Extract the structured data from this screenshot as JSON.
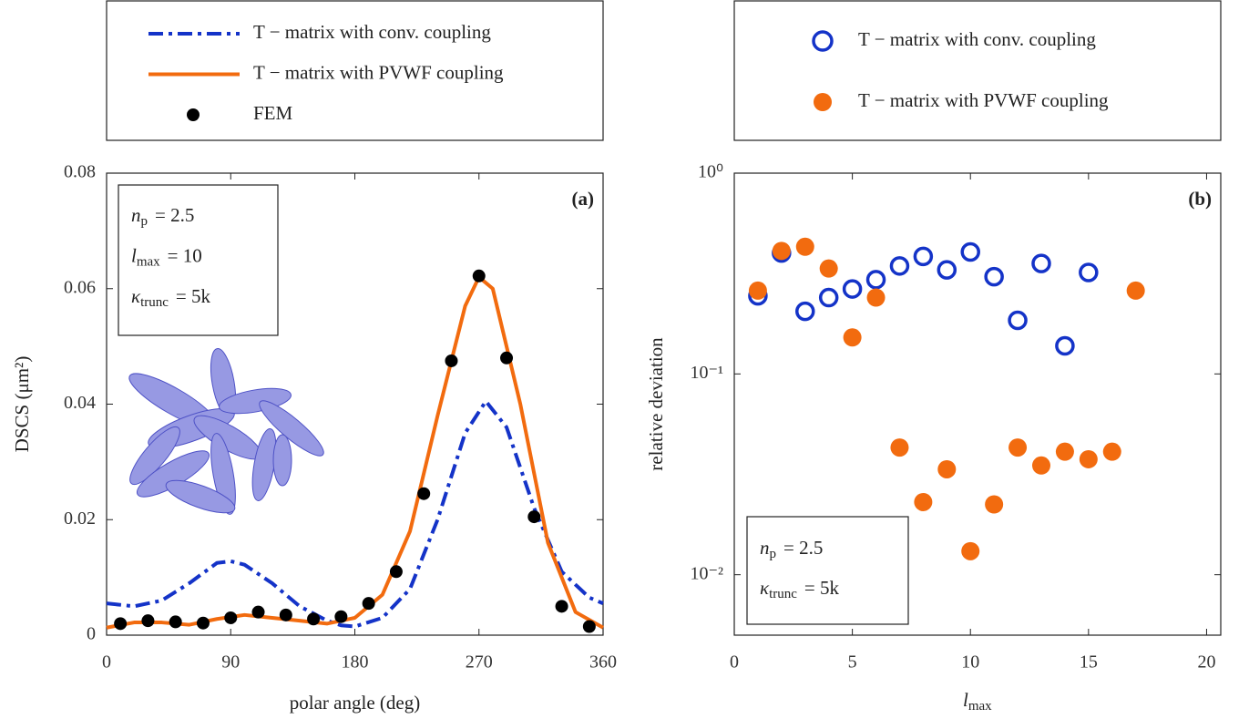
{
  "chart_data": [
    {
      "type": "line",
      "label": "(a)",
      "xlabel": "polar angle (deg)",
      "ylabel": "DSCS (μm²)",
      "xlim": [
        0,
        360
      ],
      "xticks": [
        0,
        90,
        180,
        270,
        360
      ],
      "ylim": [
        0,
        0.08
      ],
      "yticks": [
        0,
        0.02,
        0.04,
        0.06,
        0.08
      ],
      "annotations": [
        {
          "symbol": "n",
          "sub": "p",
          "text": "= 2.5"
        },
        {
          "symbol": "l",
          "sub": "max",
          "text": "= 10"
        },
        {
          "symbol": "κ",
          "sub": "trunc",
          "text": "= 5k"
        }
      ],
      "series": [
        {
          "name": "T − matrix with conv. coupling",
          "color": "#1433c8",
          "style": "dashdot",
          "x": [
            0,
            20,
            40,
            60,
            80,
            90,
            100,
            120,
            140,
            160,
            170,
            180,
            200,
            220,
            240,
            260,
            275,
            290,
            310,
            330,
            350,
            360
          ],
          "values": [
            0.0055,
            0.005,
            0.006,
            0.009,
            0.0125,
            0.0128,
            0.0122,
            0.009,
            0.005,
            0.0025,
            0.0017,
            0.0015,
            0.003,
            0.008,
            0.02,
            0.035,
            0.0405,
            0.036,
            0.022,
            0.011,
            0.0065,
            0.0055
          ]
        },
        {
          "name": "T − matrix with PVWF coupling",
          "color": "#f26b0f",
          "style": "solid",
          "x": [
            0,
            20,
            40,
            60,
            80,
            100,
            120,
            140,
            160,
            180,
            200,
            220,
            240,
            260,
            270,
            280,
            300,
            320,
            340,
            360
          ],
          "values": [
            0.0013,
            0.0022,
            0.0022,
            0.0018,
            0.0028,
            0.0035,
            0.003,
            0.0025,
            0.002,
            0.003,
            0.007,
            0.018,
            0.038,
            0.057,
            0.062,
            0.06,
            0.04,
            0.016,
            0.004,
            0.0013
          ]
        },
        {
          "name": "FEM",
          "color": "#000000",
          "style": "marker",
          "x": [
            10,
            30,
            50,
            70,
            90,
            110,
            130,
            150,
            170,
            190,
            210,
            230,
            250,
            270,
            290,
            310,
            330,
            350
          ],
          "values": [
            0.002,
            0.0025,
            0.0023,
            0.0021,
            0.003,
            0.004,
            0.0035,
            0.0028,
            0.0032,
            0.0055,
            0.011,
            0.0245,
            0.0475,
            0.0622,
            0.048,
            0.0205,
            0.005,
            0.0015
          ]
        }
      ]
    },
    {
      "type": "scatter",
      "label": "(b)",
      "log_y": true,
      "xlabel": {
        "symbol": "l",
        "sub": "max"
      },
      "ylabel": "relative deviation",
      "xlim": [
        0,
        20.6
      ],
      "xticks": [
        0,
        5,
        10,
        15,
        20
      ],
      "ylim": [
        0.005,
        1
      ],
      "yticks": [
        {
          "value": 1,
          "label": "10⁰"
        },
        {
          "value": 0.1,
          "label": "10⁻¹"
        },
        {
          "value": 0.01,
          "label": "10⁻²"
        }
      ],
      "annotations": [
        {
          "symbol": "n",
          "sub": "p",
          "text": "= 2.5"
        },
        {
          "symbol": "κ",
          "sub": "trunc",
          "text": "= 5k"
        }
      ],
      "series": [
        {
          "name": "T − matrix with conv. coupling",
          "color": "#1433c8",
          "style": "open",
          "x": [
            1,
            2,
            3,
            4,
            5,
            6,
            7,
            8,
            9,
            10,
            11,
            12,
            13,
            14,
            15
          ],
          "values": [
            0.245,
            0.4,
            0.205,
            0.24,
            0.265,
            0.295,
            0.345,
            0.385,
            0.33,
            0.405,
            0.305,
            0.185,
            0.355,
            0.138,
            0.32
          ]
        },
        {
          "name": "T − matrix with PVWF coupling",
          "color": "#f26b0f",
          "style": "filled",
          "x": [
            1,
            2,
            3,
            4,
            5,
            6,
            7,
            8,
            9,
            10,
            11,
            12,
            13,
            14,
            15,
            16,
            17
          ],
          "values": [
            0.26,
            0.41,
            0.43,
            0.335,
            0.152,
            0.24,
            0.043,
            0.023,
            0.0335,
            0.0131,
            0.0224,
            0.043,
            0.035,
            0.041,
            0.0376,
            0.041,
            0.26
          ]
        }
      ]
    }
  ]
}
